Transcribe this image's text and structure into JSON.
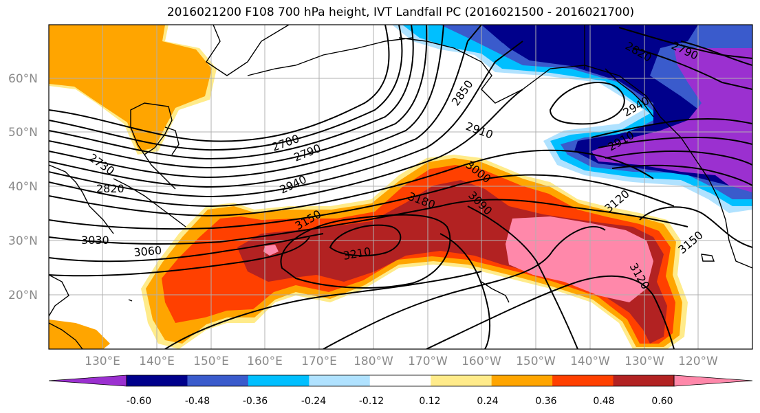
{
  "title": "2016021200 F108 700 hPa height, IVT Landfall PC (2016021500 - 2016021700)",
  "map": {
    "lat_labels": [
      "60°N",
      "50°N",
      "40°N",
      "30°N",
      "20°N"
    ],
    "lon_labels": [
      "130°E",
      "140°E",
      "150°E",
      "160°E",
      "170°E",
      "180°W",
      "170°W",
      "160°W",
      "150°W",
      "140°W",
      "130°W",
      "120°W"
    ],
    "contour_labels": [
      "2730",
      "2820",
      "3030",
      "3060",
      "2700",
      "2790",
      "2940",
      "3150",
      "3210",
      "2850",
      "2910",
      "3000",
      "3090",
      "3180",
      "3120",
      "3150",
      "3120",
      "2820",
      "2790",
      "2910",
      "2940"
    ]
  },
  "colorbar": {
    "ticks": [
      "-0.60",
      "-0.48",
      "-0.36",
      "-0.24",
      "-0.12",
      "0.12",
      "0.24",
      "0.36",
      "0.48",
      "0.60"
    ],
    "colors": [
      "#9b30d0",
      "#00008b",
      "#3a5bcc",
      "#00bfff",
      "#b0e2ff",
      "#ffffff",
      "#ffeb8a",
      "#ffa500",
      "#ff4000",
      "#b22222",
      "#ff88aa"
    ]
  }
}
